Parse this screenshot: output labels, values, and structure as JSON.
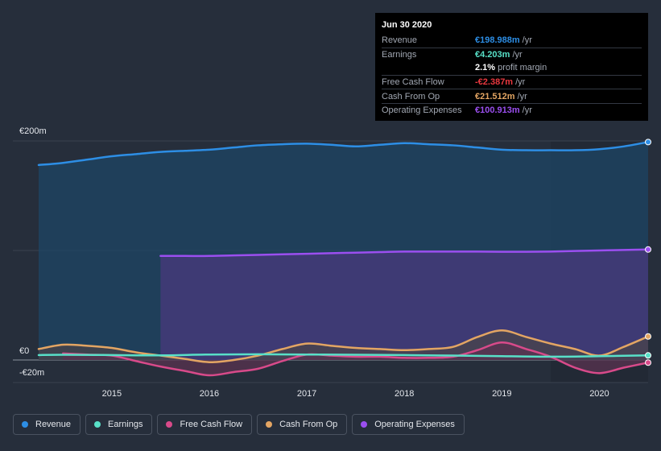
{
  "chart_data": {
    "type": "area",
    "title": "",
    "currency": "€",
    "y_unit": "m",
    "ylim": [
      -20,
      200
    ],
    "xlim": [
      2014.25,
      2020.5
    ],
    "y_axis_labels": [
      "€200m",
      "€0",
      "-€20m"
    ],
    "x_tick_labels": [
      "2015",
      "2016",
      "2017",
      "2018",
      "2019",
      "2020"
    ],
    "x_ticks": [
      2015,
      2016,
      2017,
      2018,
      2019,
      2020
    ],
    "forecast_start": 2019.5,
    "series": [
      {
        "name": "Revenue",
        "color": "#2d8ee5",
        "fill": true,
        "fill_color": "#1e4566",
        "x": [
          2014.25,
          2014.5,
          2014.75,
          2015.0,
          2015.25,
          2015.5,
          2015.75,
          2016.0,
          2016.25,
          2016.5,
          2016.75,
          2017.0,
          2017.25,
          2017.5,
          2017.75,
          2018.0,
          2018.25,
          2018.5,
          2018.75,
          2019.0,
          2019.25,
          2019.5,
          2019.75,
          2020.0,
          2020.25,
          2020.5
        ],
        "values": [
          178,
          180,
          183,
          186,
          188,
          190,
          191,
          192,
          194,
          196,
          197,
          197.5,
          196.5,
          195,
          196.5,
          198,
          197,
          196,
          194,
          192,
          191.5,
          191.5,
          191.5,
          192.5,
          195,
          199
        ]
      },
      {
        "name": "Operating Expenses",
        "color": "#9b4ff0",
        "fill": true,
        "fill_color": "#4a3a7e",
        "x": [
          2015.5,
          2015.75,
          2016.0,
          2016.25,
          2016.5,
          2016.75,
          2017.0,
          2017.25,
          2017.5,
          2017.75,
          2018.0,
          2018.25,
          2018.5,
          2018.75,
          2019.0,
          2019.25,
          2019.5,
          2019.75,
          2020.0,
          2020.25,
          2020.5
        ],
        "values": [
          95,
          95,
          95,
          95.5,
          96,
          96.5,
          97,
          97.5,
          98,
          98.5,
          99,
          99,
          99,
          99,
          98.8,
          98.8,
          99,
          99.5,
          100,
          100.5,
          100.9
        ]
      },
      {
        "name": "Cash From Op",
        "color": "#e3a563",
        "fill": true,
        "fill_color": "#4a4449",
        "x": [
          2014.25,
          2014.5,
          2014.75,
          2015.0,
          2015.25,
          2015.5,
          2015.75,
          2016.0,
          2016.25,
          2016.5,
          2016.75,
          2017.0,
          2017.25,
          2017.5,
          2017.75,
          2018.0,
          2018.25,
          2018.5,
          2018.75,
          2019.0,
          2019.25,
          2019.5,
          2019.75,
          2020.0,
          2020.25,
          2020.5
        ],
        "values": [
          10,
          14,
          13,
          11,
          7,
          4,
          1,
          -2,
          0,
          4,
          10,
          15,
          13,
          11,
          10,
          9,
          10,
          12,
          21,
          27,
          21,
          15,
          10,
          4,
          12,
          21.5
        ]
      },
      {
        "name": "Free Cash Flow",
        "color": "#d84a8a",
        "fill": true,
        "fill_color": "#5a3350",
        "x": [
          2014.5,
          2014.75,
          2015.0,
          2015.25,
          2015.5,
          2015.75,
          2016.0,
          2016.25,
          2016.5,
          2016.75,
          2017.0,
          2017.25,
          2017.5,
          2017.75,
          2018.0,
          2018.25,
          2018.5,
          2018.75,
          2019.0,
          2019.25,
          2019.5,
          2019.75,
          2020.0,
          2020.25,
          2020.5
        ],
        "values": [
          6,
          5,
          4,
          -1,
          -6,
          -10,
          -14,
          -11,
          -8,
          -1,
          5,
          4,
          3,
          3,
          2,
          2,
          3,
          9,
          16,
          10,
          3,
          -7,
          -12,
          -7,
          -2.4
        ]
      },
      {
        "name": "Earnings",
        "color": "#58e0c8",
        "fill": false,
        "x": [
          2014.25,
          2014.5,
          2015.0,
          2015.5,
          2016.0,
          2016.5,
          2017.0,
          2017.5,
          2018.0,
          2018.5,
          2019.0,
          2019.5,
          2020.0,
          2020.5
        ],
        "values": [
          4.5,
          4.8,
          4.5,
          4.2,
          5,
          5.2,
          5,
          4.8,
          4.5,
          4,
          3.5,
          3,
          3.5,
          4.2
        ]
      }
    ]
  },
  "tooltip": {
    "date": "Jun 30 2020",
    "rows": [
      {
        "label": "Revenue",
        "value": "€198.988m",
        "unit": "/yr",
        "color": "#2d8ee5"
      },
      {
        "label": "Earnings",
        "value": "€4.203m",
        "unit": "/yr",
        "color": "#58e0c8"
      },
      {
        "label": "Free Cash Flow",
        "value": "-€2.387m",
        "unit": "/yr",
        "color": "#e9383f"
      },
      {
        "label": "Cash From Op",
        "value": "€21.512m",
        "unit": "/yr",
        "color": "#e3a563"
      },
      {
        "label": "Operating Expenses",
        "value": "€100.913m",
        "unit": "/yr",
        "color": "#9b4ff0"
      }
    ],
    "margin_value": "2.1%",
    "margin_label": "profit margin"
  },
  "legend": [
    {
      "label": "Revenue",
      "color": "#2d8ee5"
    },
    {
      "label": "Earnings",
      "color": "#58e0c8"
    },
    {
      "label": "Free Cash Flow",
      "color": "#d84a8a"
    },
    {
      "label": "Cash From Op",
      "color": "#e3a563"
    },
    {
      "label": "Operating Expenses",
      "color": "#9b4ff0"
    }
  ]
}
